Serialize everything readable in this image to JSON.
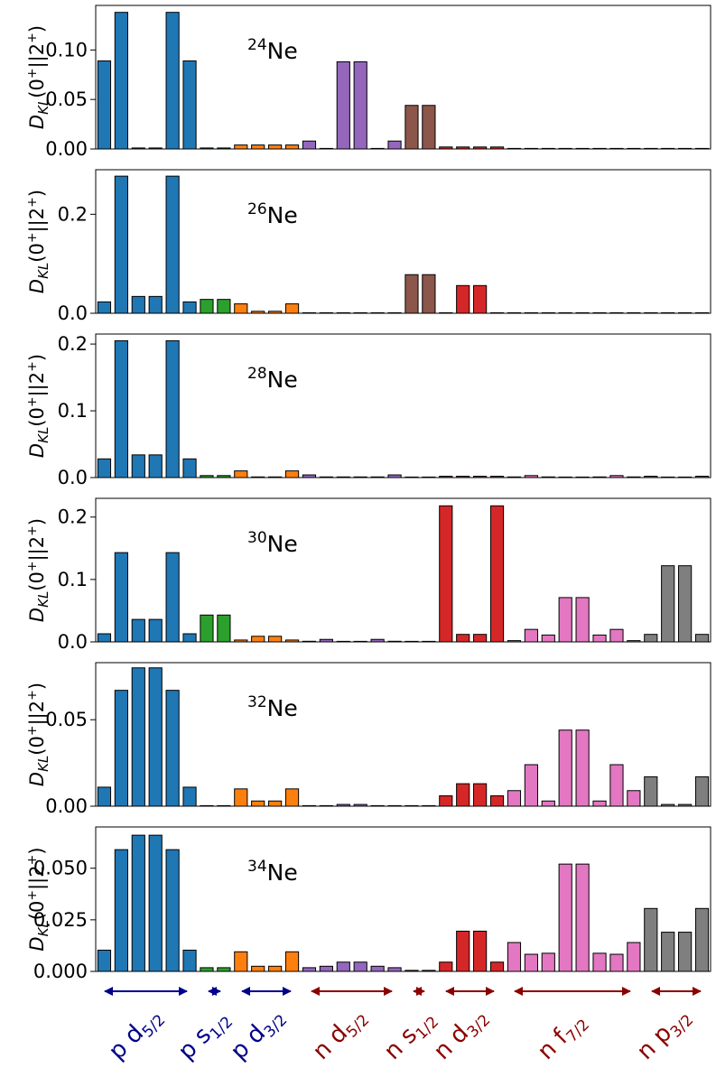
{
  "figure_colors": {
    "p_d52": "#1f77b4",
    "p_s12": "#2ca02c",
    "p_d32": "#ff7f0e",
    "n_d52": "#9467bd",
    "n_s12": "#8c564b",
    "n_d32": "#d62728",
    "n_f72": "#e377c2",
    "n_p32": "#7f7f7f",
    "proton_label": "#00008b",
    "neutron_label": "#8b0000"
  },
  "groups": [
    {
      "key": "p_d52",
      "base": "p d",
      "sub": "5/2",
      "count": 6,
      "kind": "proton"
    },
    {
      "key": "p_s12",
      "base": "p s",
      "sub": "1/2",
      "count": 2,
      "kind": "proton"
    },
    {
      "key": "p_d32",
      "base": "p d",
      "sub": "3/2",
      "count": 4,
      "kind": "proton"
    },
    {
      "key": "n_d52",
      "base": "n d",
      "sub": "5/2",
      "count": 6,
      "kind": "neutron"
    },
    {
      "key": "n_s12",
      "base": "n s",
      "sub": "1/2",
      "count": 2,
      "kind": "neutron"
    },
    {
      "key": "n_d32",
      "base": "n d",
      "sub": "3/2",
      "count": 4,
      "kind": "neutron"
    },
    {
      "key": "n_f72",
      "base": "n f",
      "sub": "7/2",
      "count": 8,
      "kind": "neutron"
    },
    {
      "key": "n_p32",
      "base": "n p",
      "sub": "3/2",
      "count": 4,
      "kind": "neutron"
    }
  ],
  "chart_data": [
    {
      "type": "bar",
      "title_mass": "24",
      "title_elem": "Ne",
      "ylabel": "D_KL(0+||2+)",
      "ylim": [
        0,
        0.145
      ],
      "yticks": [
        0.0,
        0.05,
        0.1
      ],
      "ytick_labels": [
        "0.00",
        "0.05",
        "0.10"
      ],
      "values": [
        0.089,
        0.138,
        0.001,
        0.001,
        0.138,
        0.089,
        0.001,
        0.001,
        0.004,
        0.004,
        0.004,
        0.004,
        0.008,
        0.0,
        0.088,
        0.088,
        0.0,
        0.008,
        0.044,
        0.044,
        0.002,
        0.002,
        0.002,
        0.002,
        0.0,
        0.0,
        0.0,
        0.0,
        0.0,
        0.0,
        0.0,
        0.0,
        0.0,
        0.0,
        0.0,
        0.0
      ]
    },
    {
      "type": "bar",
      "title_mass": "26",
      "title_elem": "Ne",
      "ylabel": "D_KL(0+||2+)",
      "ylim": [
        0,
        0.29
      ],
      "yticks": [
        0.0,
        0.2
      ],
      "ytick_labels": [
        "0.0",
        "0.2"
      ],
      "values": [
        0.023,
        0.277,
        0.034,
        0.034,
        0.277,
        0.023,
        0.028,
        0.028,
        0.019,
        0.004,
        0.004,
        0.019,
        0.0,
        0.0,
        0.001,
        0.001,
        0.0,
        0.0,
        0.078,
        0.078,
        0.0,
        0.056,
        0.056,
        0.0,
        0.0,
        0.0,
        0.0,
        0.0,
        0.0,
        0.0,
        0.0,
        0.0,
        0.0,
        0.0,
        0.0,
        0.0
      ]
    },
    {
      "type": "bar",
      "title_mass": "28",
      "title_elem": "Ne",
      "ylabel": "D_KL(0+||2+)",
      "ylim": [
        0,
        0.215
      ],
      "yticks": [
        0.0,
        0.1,
        0.2
      ],
      "ytick_labels": [
        "0.0",
        "0.1",
        "0.2"
      ],
      "values": [
        0.028,
        0.205,
        0.034,
        0.034,
        0.205,
        0.028,
        0.003,
        0.003,
        0.01,
        0.001,
        0.001,
        0.01,
        0.004,
        0.001,
        0.001,
        0.001,
        0.001,
        0.004,
        0.0,
        0.0,
        0.002,
        0.002,
        0.002,
        0.002,
        0.001,
        0.003,
        0.001,
        0.0,
        0.0,
        0.001,
        0.003,
        0.001,
        0.002,
        0.0,
        0.0,
        0.002
      ]
    },
    {
      "type": "bar",
      "title_mass": "30",
      "title_elem": "Ne",
      "ylabel": "D_KL(0+||2+)",
      "ylim": [
        0,
        0.23
      ],
      "yticks": [
        0.0,
        0.1,
        0.2
      ],
      "ytick_labels": [
        "0.0",
        "0.1",
        "0.2"
      ],
      "values": [
        0.013,
        0.143,
        0.036,
        0.036,
        0.143,
        0.013,
        0.043,
        0.043,
        0.003,
        0.009,
        0.009,
        0.003,
        0.001,
        0.004,
        0.0,
        0.0,
        0.004,
        0.001,
        0.0,
        0.0,
        0.218,
        0.012,
        0.012,
        0.218,
        0.002,
        0.02,
        0.011,
        0.071,
        0.071,
        0.011,
        0.02,
        0.002,
        0.012,
        0.122,
        0.122,
        0.012
      ]
    },
    {
      "type": "bar",
      "title_mass": "32",
      "title_elem": "Ne",
      "ylabel": "D_KL(0+||2+)",
      "ylim": [
        0,
        0.083
      ],
      "yticks": [
        0.0,
        0.05
      ],
      "ytick_labels": [
        "0.00",
        "0.05"
      ],
      "values": [
        0.011,
        0.067,
        0.08,
        0.08,
        0.067,
        0.011,
        0.0,
        0.0,
        0.01,
        0.003,
        0.003,
        0.01,
        0.0,
        0.0,
        0.001,
        0.001,
        0.0,
        0.0,
        0.0,
        0.0,
        0.006,
        0.013,
        0.013,
        0.006,
        0.009,
        0.024,
        0.003,
        0.044,
        0.044,
        0.003,
        0.024,
        0.009,
        0.017,
        0.001,
        0.001,
        0.017
      ]
    },
    {
      "type": "bar",
      "title_mass": "34",
      "title_elem": "Ne",
      "ylabel": "D_KL(0+||2+)",
      "ylim": [
        0,
        0.07
      ],
      "yticks": [
        0.0,
        0.025,
        0.05
      ],
      "ytick_labels": [
        "0.000",
        "0.025",
        "0.050"
      ],
      "values": [
        0.0103,
        0.059,
        0.066,
        0.066,
        0.059,
        0.0103,
        0.0018,
        0.0018,
        0.0095,
        0.0025,
        0.0025,
        0.0095,
        0.0018,
        0.0025,
        0.0045,
        0.0045,
        0.0025,
        0.0018,
        0.0005,
        0.0005,
        0.0045,
        0.0195,
        0.0195,
        0.0045,
        0.014,
        0.0083,
        0.0088,
        0.052,
        0.052,
        0.0088,
        0.0083,
        0.014,
        0.0305,
        0.019,
        0.019,
        0.0305
      ]
    }
  ]
}
